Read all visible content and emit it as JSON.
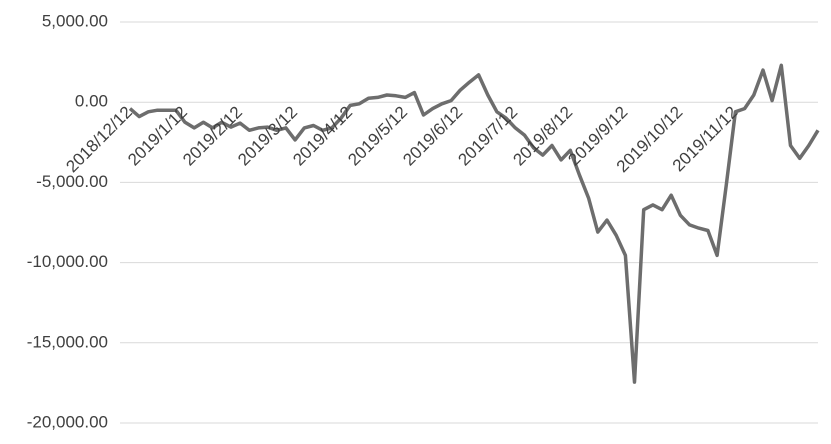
{
  "chart_data": {
    "type": "line",
    "categories": [
      "2018/12/12",
      null,
      null,
      null,
      null,
      null,
      "2019/1/12",
      null,
      null,
      null,
      null,
      null,
      "2019/2/12",
      null,
      null,
      null,
      null,
      null,
      "2019/3/12",
      null,
      null,
      null,
      null,
      null,
      "2019/4/12",
      null,
      null,
      null,
      null,
      null,
      "2019/5/12",
      null,
      null,
      null,
      null,
      null,
      "2019/6/12",
      null,
      null,
      null,
      null,
      null,
      "2019/7/12",
      null,
      null,
      null,
      null,
      null,
      "2019/8/12",
      null,
      null,
      null,
      null,
      null,
      "2019/9/12",
      null,
      null,
      null,
      null,
      null,
      "2019/10/12",
      null,
      null,
      null,
      null,
      null,
      "2019/11/12",
      null,
      null,
      null,
      null,
      null,
      null,
      null,
      null,
      null
    ],
    "series": [
      {
        "color": "#6d6d6d",
        "values": [
          -400,
          -900,
          -600,
          -500,
          -500,
          -500,
          -1250,
          -1600,
          -1250,
          -1600,
          -1250,
          -1550,
          -1300,
          -1750,
          -1600,
          -1550,
          -1750,
          -1600,
          -2350,
          -1600,
          -1450,
          -1750,
          -1600,
          -1000,
          -200,
          -100,
          250,
          300,
          450,
          400,
          300,
          600,
          -800,
          -400,
          -100,
          100,
          750,
          1250,
          1700,
          450,
          -600,
          -1000,
          -1600,
          -2050,
          -2850,
          -3300,
          -2700,
          -3600,
          -3000,
          -4550,
          -6000,
          -8100,
          -7350,
          -8300,
          -9550,
          -17450,
          -6700,
          -6400,
          -6700,
          -5800,
          -7050,
          -7650,
          -7850,
          -8000,
          -9550,
          -5150,
          -600,
          -400,
          450,
          2000,
          100,
          2300,
          -2700,
          -3500,
          -2700,
          -1750
        ]
      }
    ],
    "ylim": [
      -20000,
      5000
    ],
    "yticks": [
      {
        "value": -20000,
        "label": "-20,000.00"
      },
      {
        "value": -15000,
        "label": "-15,000.00"
      },
      {
        "value": -10000,
        "label": "-10,000.00"
      },
      {
        "value": -5000,
        "label": "-5,000.00"
      },
      {
        "value": 0,
        "label": "0.00"
      },
      {
        "value": 5000,
        "label": "5,000.00"
      }
    ],
    "grid": true
  }
}
